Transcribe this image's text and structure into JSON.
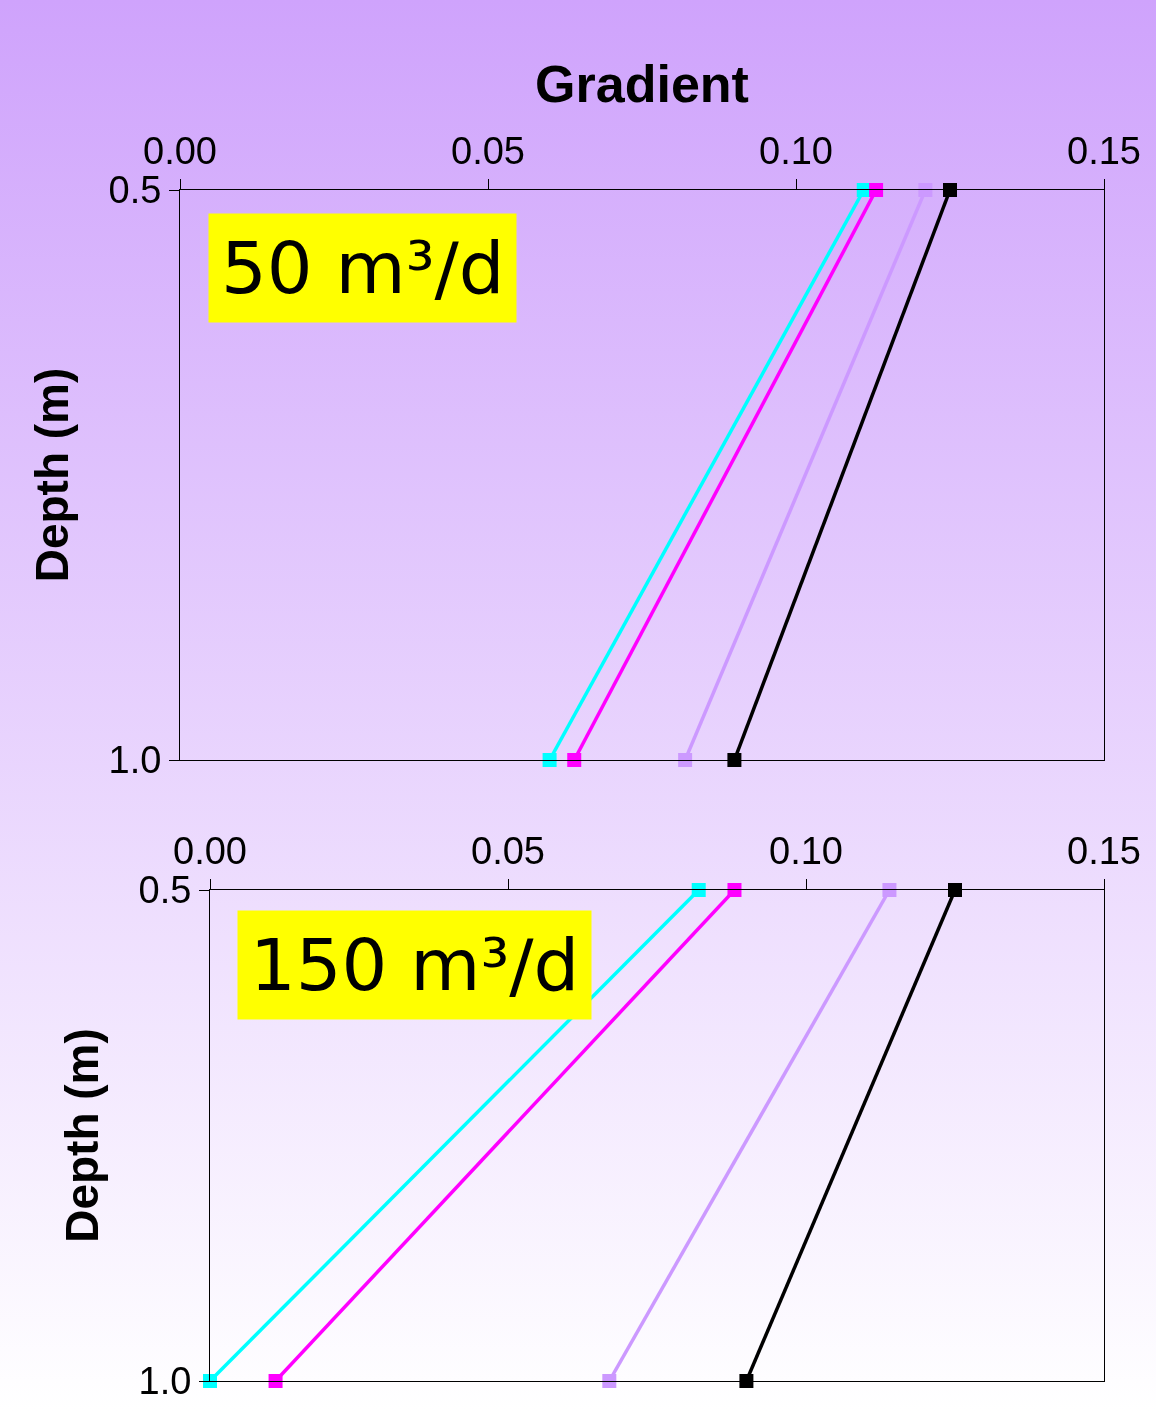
{
  "chart_data": [
    {
      "type": "line",
      "xlabel": "Gradient",
      "ylabel": "Depth (m)",
      "annotations": [
        "50 m³/d"
      ],
      "marker": "square",
      "grid": false,
      "xlim": [
        0,
        0.15
      ],
      "xticks": [
        {
          "value": 0,
          "label": "0.00"
        },
        {
          "value": 0.05,
          "label": "0.05"
        },
        {
          "value": 0.1,
          "label": "0.10"
        },
        {
          "value": 0.15,
          "label": "0.15"
        }
      ],
      "ylim": [
        1.0,
        0.5
      ],
      "yticks": [
        0.5,
        {
          "value": 1.0,
          "label": "1.0"
        }
      ],
      "series": [
        {
          "color": "#00ffff",
          "x": [
            0.111,
            0.06
          ],
          "values": [
            0.5,
            1.0
          ]
        },
        {
          "color": "#ff00ff",
          "x": [
            0.113,
            0.064
          ],
          "values": [
            0.5,
            1.0
          ]
        },
        {
          "color": "#cc99ff",
          "x": [
            0.121,
            0.082
          ],
          "values": [
            0.5,
            1.0
          ]
        },
        {
          "color": "#000000",
          "x": [
            0.125,
            0.09
          ],
          "values": [
            0.5,
            1.0
          ]
        }
      ]
    },
    {
      "type": "line",
      "ylabel": "Depth (m)",
      "annotations": [
        "150 m³/d"
      ],
      "marker": "square",
      "grid": false,
      "xlim": [
        0,
        0.15
      ],
      "xticks": [
        {
          "value": 0,
          "label": "0.00"
        },
        {
          "value": 0.05,
          "label": "0.05"
        },
        {
          "value": 0.1,
          "label": "0.10"
        },
        {
          "value": 0.15,
          "label": "0.15"
        }
      ],
      "ylim": [
        1.0,
        0.5
      ],
      "yticks": [
        0.5,
        {
          "value": 1.0,
          "label": "1.0"
        }
      ],
      "series": [
        {
          "color": "#00ffff",
          "x": [
            0.082,
            0.0
          ],
          "values": [
            0.5,
            1.0
          ]
        },
        {
          "color": "#ff00ff",
          "x": [
            0.088,
            0.011
          ],
          "values": [
            0.5,
            1.0
          ]
        },
        {
          "color": "#cc99ff",
          "x": [
            0.114,
            0.067
          ],
          "values": [
            0.5,
            1.0
          ]
        },
        {
          "color": "#000000",
          "x": [
            0.125,
            0.09
          ],
          "values": [
            0.5,
            1.0
          ]
        }
      ]
    }
  ]
}
